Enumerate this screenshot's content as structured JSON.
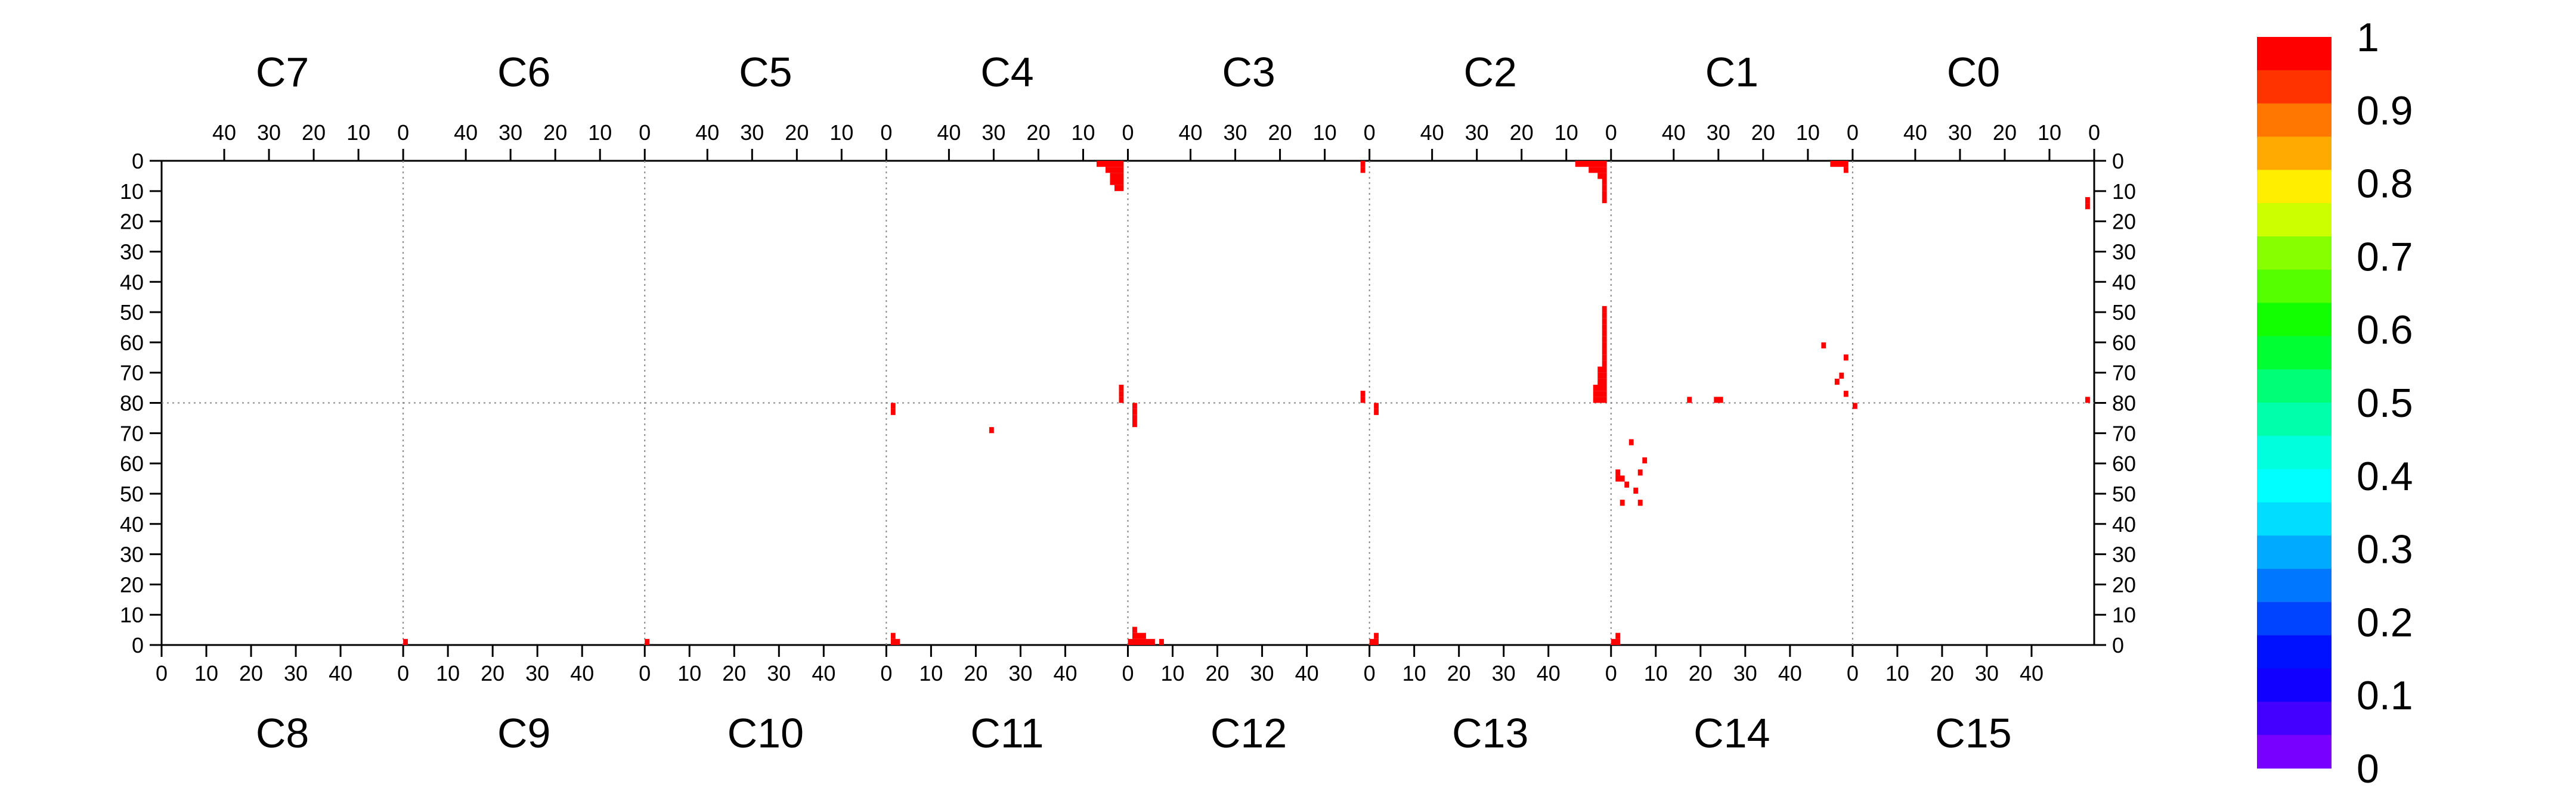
{
  "chart_data": {
    "type": "heatmap",
    "title": "",
    "xlabel": "",
    "ylabel": "",
    "top_sectors": [
      "C7",
      "C6",
      "C5",
      "C4",
      "C3",
      "C2",
      "C1",
      "C0"
    ],
    "bottom_sectors": [
      "C8",
      "C9",
      "C10",
      "C11",
      "C12",
      "C13",
      "C14",
      "C15"
    ],
    "x_range_per_sector": [
      0,
      54
    ],
    "top_x_tick_labels": [
      "40",
      "30",
      "20",
      "10",
      "0"
    ],
    "bottom_x_tick_labels": [
      "0",
      "10",
      "20",
      "30",
      "40"
    ],
    "y_range_top_half": [
      0,
      80
    ],
    "y_range_bottom_half": [
      80,
      0
    ],
    "y_tick_labels": [
      "0",
      "10",
      "20",
      "30",
      "40",
      "50",
      "60",
      "70",
      "80",
      "70",
      "60",
      "50",
      "40",
      "30",
      "20",
      "10",
      "0"
    ],
    "zlim": [
      0,
      1
    ],
    "colorbar_labels": [
      "1",
      "0.9",
      "0.8",
      "0.7",
      "0.6",
      "0.5",
      "0.4",
      "0.3",
      "0.2",
      "0.1",
      "0"
    ],
    "colorbar_colors": [
      "#ff0000",
      "#ff3300",
      "#ff7700",
      "#ffaa00",
      "#ffee00",
      "#ccff00",
      "#88ff00",
      "#55ff00",
      "#11ff00",
      "#00ff33",
      "#00ff77",
      "#00ffaa",
      "#00ffdd",
      "#00ffff",
      "#00ddff",
      "#00aaff",
      "#0077ff",
      "#0044ff",
      "#0011ff",
      "#1100ff",
      "#4400ff",
      "#7700ff"
    ],
    "cell_color": "#ff0000",
    "grid": "dotted",
    "legend": "right",
    "cells": [
      {
        "half": "top",
        "sector": "C4",
        "x": 1,
        "y": 0,
        "v": 1
      },
      {
        "half": "top",
        "sector": "C4",
        "x": 1,
        "y": 2,
        "v": 1
      },
      {
        "half": "top",
        "sector": "C4",
        "x": 1,
        "y": 4,
        "v": 1
      },
      {
        "half": "top",
        "sector": "C4",
        "x": 1,
        "y": 6,
        "v": 1
      },
      {
        "half": "top",
        "sector": "C4",
        "x": 1,
        "y": 8,
        "v": 1
      },
      {
        "half": "top",
        "sector": "C4",
        "x": 2,
        "y": 0,
        "v": 1
      },
      {
        "half": "top",
        "sector": "C4",
        "x": 2,
        "y": 2,
        "v": 1
      },
      {
        "half": "top",
        "sector": "C4",
        "x": 2,
        "y": 4,
        "v": 1
      },
      {
        "half": "top",
        "sector": "C4",
        "x": 2,
        "y": 6,
        "v": 1
      },
      {
        "half": "top",
        "sector": "C4",
        "x": 2,
        "y": 8,
        "v": 1
      },
      {
        "half": "top",
        "sector": "C4",
        "x": 3,
        "y": 0,
        "v": 1
      },
      {
        "half": "top",
        "sector": "C4",
        "x": 3,
        "y": 2,
        "v": 1
      },
      {
        "half": "top",
        "sector": "C4",
        "x": 3,
        "y": 4,
        "v": 1
      },
      {
        "half": "top",
        "sector": "C4",
        "x": 3,
        "y": 6,
        "v": 1
      },
      {
        "half": "top",
        "sector": "C4",
        "x": 4,
        "y": 0,
        "v": 1
      },
      {
        "half": "top",
        "sector": "C4",
        "x": 4,
        "y": 2,
        "v": 1
      },
      {
        "half": "top",
        "sector": "C4",
        "x": 5,
        "y": 0,
        "v": 1
      },
      {
        "half": "top",
        "sector": "C4",
        "x": 6,
        "y": 0,
        "v": 1
      },
      {
        "half": "top",
        "sector": "C3",
        "x": 1,
        "y": 0,
        "v": 1
      },
      {
        "half": "top",
        "sector": "C3",
        "x": 1,
        "y": 2,
        "v": 1
      },
      {
        "half": "top",
        "sector": "C2",
        "x": 1,
        "y": 0,
        "v": 1
      },
      {
        "half": "top",
        "sector": "C2",
        "x": 1,
        "y": 2,
        "v": 1
      },
      {
        "half": "top",
        "sector": "C2",
        "x": 1,
        "y": 4,
        "v": 1
      },
      {
        "half": "top",
        "sector": "C2",
        "x": 1,
        "y": 6,
        "v": 1
      },
      {
        "half": "top",
        "sector": "C2",
        "x": 1,
        "y": 8,
        "v": 1
      },
      {
        "half": "top",
        "sector": "C2",
        "x": 1,
        "y": 10,
        "v": 1
      },
      {
        "half": "top",
        "sector": "C2",
        "x": 1,
        "y": 12,
        "v": 1
      },
      {
        "half": "top",
        "sector": "C2",
        "x": 2,
        "y": 0,
        "v": 1
      },
      {
        "half": "top",
        "sector": "C2",
        "x": 2,
        "y": 2,
        "v": 1
      },
      {
        "half": "top",
        "sector": "C2",
        "x": 2,
        "y": 4,
        "v": 1
      },
      {
        "half": "top",
        "sector": "C2",
        "x": 3,
        "y": 0,
        "v": 1
      },
      {
        "half": "top",
        "sector": "C2",
        "x": 3,
        "y": 2,
        "v": 1
      },
      {
        "half": "top",
        "sector": "C2",
        "x": 4,
        "y": 0,
        "v": 1
      },
      {
        "half": "top",
        "sector": "C2",
        "x": 4,
        "y": 2,
        "v": 1
      },
      {
        "half": "top",
        "sector": "C2",
        "x": 5,
        "y": 0,
        "v": 1
      },
      {
        "half": "top",
        "sector": "C2",
        "x": 6,
        "y": 0,
        "v": 1
      },
      {
        "half": "top",
        "sector": "C2",
        "x": 7,
        "y": 0,
        "v": 1
      },
      {
        "half": "top",
        "sector": "C1",
        "x": 1,
        "y": 0,
        "v": 1
      },
      {
        "half": "top",
        "sector": "C1",
        "x": 1,
        "y": 2,
        "v": 1
      },
      {
        "half": "top",
        "sector": "C1",
        "x": 2,
        "y": 0,
        "v": 1
      },
      {
        "half": "top",
        "sector": "C1",
        "x": 3,
        "y": 0,
        "v": 1
      },
      {
        "half": "top",
        "sector": "C1",
        "x": 4,
        "y": 0,
        "v": 1
      },
      {
        "half": "top",
        "sector": "C0",
        "x": 1,
        "y": 12,
        "v": 1
      },
      {
        "half": "top",
        "sector": "C0",
        "x": 1,
        "y": 14,
        "v": 1
      },
      {
        "half": "top",
        "sector": "C4",
        "x": 1,
        "y": 74,
        "v": 1
      },
      {
        "half": "top",
        "sector": "C4",
        "x": 1,
        "y": 76,
        "v": 1
      },
      {
        "half": "top",
        "sector": "C4",
        "x": 1,
        "y": 78,
        "v": 1
      },
      {
        "half": "top",
        "sector": "C3",
        "x": 1,
        "y": 76,
        "v": 1
      },
      {
        "half": "top",
        "sector": "C3",
        "x": 1,
        "y": 78,
        "v": 1
      },
      {
        "half": "top",
        "sector": "C2",
        "x": 1,
        "y": 48,
        "v": 1
      },
      {
        "half": "top",
        "sector": "C2",
        "x": 1,
        "y": 50,
        "v": 1
      },
      {
        "half": "top",
        "sector": "C2",
        "x": 1,
        "y": 52,
        "v": 1
      },
      {
        "half": "top",
        "sector": "C2",
        "x": 1,
        "y": 54,
        "v": 1
      },
      {
        "half": "top",
        "sector": "C2",
        "x": 1,
        "y": 56,
        "v": 1
      },
      {
        "half": "top",
        "sector": "C2",
        "x": 1,
        "y": 58,
        "v": 1
      },
      {
        "half": "top",
        "sector": "C2",
        "x": 1,
        "y": 60,
        "v": 1
      },
      {
        "half": "top",
        "sector": "C2",
        "x": 1,
        "y": 62,
        "v": 1
      },
      {
        "half": "top",
        "sector": "C2",
        "x": 1,
        "y": 64,
        "v": 1
      },
      {
        "half": "top",
        "sector": "C2",
        "x": 1,
        "y": 66,
        "v": 1
      },
      {
        "half": "top",
        "sector": "C2",
        "x": 1,
        "y": 68,
        "v": 1
      },
      {
        "half": "top",
        "sector": "C2",
        "x": 1,
        "y": 70,
        "v": 1
      },
      {
        "half": "top",
        "sector": "C2",
        "x": 1,
        "y": 72,
        "v": 1
      },
      {
        "half": "top",
        "sector": "C2",
        "x": 1,
        "y": 74,
        "v": 1
      },
      {
        "half": "top",
        "sector": "C2",
        "x": 1,
        "y": 76,
        "v": 1
      },
      {
        "half": "top",
        "sector": "C2",
        "x": 1,
        "y": 78,
        "v": 1
      },
      {
        "half": "top",
        "sector": "C2",
        "x": 2,
        "y": 68,
        "v": 1
      },
      {
        "half": "top",
        "sector": "C2",
        "x": 2,
        "y": 70,
        "v": 1
      },
      {
        "half": "top",
        "sector": "C2",
        "x": 2,
        "y": 72,
        "v": 1
      },
      {
        "half": "top",
        "sector": "C2",
        "x": 2,
        "y": 74,
        "v": 1
      },
      {
        "half": "top",
        "sector": "C2",
        "x": 2,
        "y": 76,
        "v": 1
      },
      {
        "half": "top",
        "sector": "C2",
        "x": 2,
        "y": 78,
        "v": 1
      },
      {
        "half": "top",
        "sector": "C2",
        "x": 3,
        "y": 74,
        "v": 1
      },
      {
        "half": "top",
        "sector": "C2",
        "x": 3,
        "y": 76,
        "v": 1
      },
      {
        "half": "top",
        "sector": "C2",
        "x": 3,
        "y": 78,
        "v": 1
      },
      {
        "half": "top",
        "sector": "C1",
        "x": 36,
        "y": 78,
        "v": 1
      },
      {
        "half": "top",
        "sector": "C1",
        "x": 6,
        "y": 60,
        "v": 1
      },
      {
        "half": "top",
        "sector": "C1",
        "x": 1,
        "y": 64,
        "v": 1
      },
      {
        "half": "top",
        "sector": "C1",
        "x": 2,
        "y": 70,
        "v": 1
      },
      {
        "half": "top",
        "sector": "C1",
        "x": 1,
        "y": 76,
        "v": 1
      },
      {
        "half": "top",
        "sector": "C1",
        "x": 3,
        "y": 72,
        "v": 1
      },
      {
        "half": "top",
        "sector": "C0",
        "x": 1,
        "y": 78,
        "v": 1
      },
      {
        "half": "top",
        "sector": "C1",
        "x": 29,
        "y": 78,
        "v": 1
      },
      {
        "half": "top",
        "sector": "C1",
        "x": 30,
        "y": 78,
        "v": 1
      },
      {
        "half": "bottom",
        "sector": "C11",
        "x": 1,
        "y": 78,
        "v": 1
      },
      {
        "half": "bottom",
        "sector": "C11",
        "x": 1,
        "y": 76,
        "v": 1
      },
      {
        "half": "bottom",
        "sector": "C12",
        "x": 1,
        "y": 78,
        "v": 1
      },
      {
        "half": "bottom",
        "sector": "C12",
        "x": 1,
        "y": 76,
        "v": 1
      },
      {
        "half": "bottom",
        "sector": "C12",
        "x": 1,
        "y": 74,
        "v": 1
      },
      {
        "half": "bottom",
        "sector": "C12",
        "x": 1,
        "y": 72,
        "v": 1
      },
      {
        "half": "bottom",
        "sector": "C13",
        "x": 1,
        "y": 78,
        "v": 1
      },
      {
        "half": "bottom",
        "sector": "C13",
        "x": 1,
        "y": 76,
        "v": 1
      },
      {
        "half": "bottom",
        "sector": "C15",
        "x": 0,
        "y": 78,
        "v": 1
      },
      {
        "half": "bottom",
        "sector": "C11",
        "x": 23,
        "y": 70,
        "v": 1
      },
      {
        "half": "bottom",
        "sector": "C14",
        "x": 1,
        "y": 54,
        "v": 1
      },
      {
        "half": "bottom",
        "sector": "C14",
        "x": 1,
        "y": 56,
        "v": 1
      },
      {
        "half": "bottom",
        "sector": "C14",
        "x": 2,
        "y": 54,
        "v": 1
      },
      {
        "half": "bottom",
        "sector": "C14",
        "x": 3,
        "y": 52,
        "v": 1
      },
      {
        "half": "bottom",
        "sector": "C14",
        "x": 5,
        "y": 50,
        "v": 1
      },
      {
        "half": "bottom",
        "sector": "C14",
        "x": 6,
        "y": 56,
        "v": 1
      },
      {
        "half": "bottom",
        "sector": "C14",
        "x": 4,
        "y": 66,
        "v": 1
      },
      {
        "half": "bottom",
        "sector": "C14",
        "x": 7,
        "y": 60,
        "v": 1
      },
      {
        "half": "bottom",
        "sector": "C14",
        "x": 2,
        "y": 46,
        "v": 1
      },
      {
        "half": "bottom",
        "sector": "C14",
        "x": 6,
        "y": 46,
        "v": 1
      },
      {
        "half": "bottom",
        "sector": "C11",
        "x": 1,
        "y": 0,
        "v": 1
      },
      {
        "half": "bottom",
        "sector": "C11",
        "x": 1,
        "y": 2,
        "v": 1
      },
      {
        "half": "bottom",
        "sector": "C11",
        "x": 2,
        "y": 0,
        "v": 1
      },
      {
        "half": "bottom",
        "sector": "C12",
        "x": 0,
        "y": 0,
        "v": 1
      },
      {
        "half": "bottom",
        "sector": "C12",
        "x": 1,
        "y": 0,
        "v": 1
      },
      {
        "half": "bottom",
        "sector": "C12",
        "x": 1,
        "y": 2,
        "v": 1
      },
      {
        "half": "bottom",
        "sector": "C12",
        "x": 1,
        "y": 4,
        "v": 1
      },
      {
        "half": "bottom",
        "sector": "C12",
        "x": 2,
        "y": 0,
        "v": 1
      },
      {
        "half": "bottom",
        "sector": "C12",
        "x": 2,
        "y": 2,
        "v": 1
      },
      {
        "half": "bottom",
        "sector": "C12",
        "x": 3,
        "y": 0,
        "v": 1
      },
      {
        "half": "bottom",
        "sector": "C12",
        "x": 3,
        "y": 2,
        "v": 1
      },
      {
        "half": "bottom",
        "sector": "C12",
        "x": 4,
        "y": 0,
        "v": 1
      },
      {
        "half": "bottom",
        "sector": "C12",
        "x": 5,
        "y": 0,
        "v": 1
      },
      {
        "half": "bottom",
        "sector": "C12",
        "x": 7,
        "y": 0,
        "v": 1
      },
      {
        "half": "bottom",
        "sector": "C13",
        "x": 0,
        "y": 0,
        "v": 1
      },
      {
        "half": "bottom",
        "sector": "C13",
        "x": 1,
        "y": 0,
        "v": 1
      },
      {
        "half": "bottom",
        "sector": "C13",
        "x": 1,
        "y": 2,
        "v": 1
      },
      {
        "half": "bottom",
        "sector": "C14",
        "x": 0,
        "y": 0,
        "v": 1
      },
      {
        "half": "bottom",
        "sector": "C14",
        "x": 1,
        "y": 0,
        "v": 1
      },
      {
        "half": "bottom",
        "sector": "C14",
        "x": 1,
        "y": 2,
        "v": 1
      },
      {
        "half": "bottom",
        "sector": "C9",
        "x": 0,
        "y": 0,
        "v": 1
      },
      {
        "half": "bottom",
        "sector": "C10",
        "x": 0,
        "y": 0,
        "v": 1
      }
    ]
  }
}
